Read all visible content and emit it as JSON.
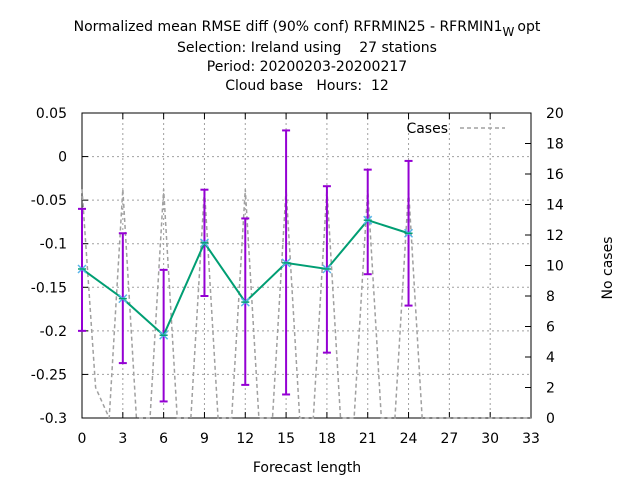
{
  "chart_data": {
    "type": "line",
    "title_lines": [
      "Normalized mean RMSE diff (90% conf) RFRMIN25 - RFRMIN1",
      "Selection: Ireland using    27 stations",
      "Period: 20200203-20200217",
      "Cloud base   Hours:  12"
    ],
    "title_subscript": "W",
    "title_suffix": "opt",
    "xlabel": "Forecast length",
    "ylabel_right": "No cases",
    "xlim": [
      0,
      33
    ],
    "ylim": [
      -0.3,
      0.05
    ],
    "y2lim": [
      0,
      20
    ],
    "x_ticks": [
      "0",
      "3",
      "6",
      "9",
      "12",
      "15",
      "18",
      "21",
      "24",
      "27",
      "30",
      "33"
    ],
    "y_ticks": [
      "0.05",
      "0",
      "-0.05",
      "-0.1",
      "-0.15",
      "-0.2",
      "-0.25",
      "-0.3"
    ],
    "y2_ticks": [
      "20",
      "18",
      "16",
      "14",
      "12",
      "10",
      "8",
      "6",
      "4",
      "2",
      "0"
    ],
    "grid": true,
    "legend_position": "top-right",
    "series": [
      {
        "name": "",
        "color": "#009e73",
        "marker_color": "#56b4e9",
        "x": [
          0,
          3,
          6,
          9,
          12,
          15,
          18,
          21,
          24
        ],
        "y": [
          -0.129,
          -0.163,
          -0.205,
          -0.099,
          -0.167,
          -0.122,
          -0.129,
          -0.073,
          -0.088
        ],
        "err_low": [
          -0.2,
          -0.237,
          -0.281,
          -0.16,
          -0.262,
          -0.273,
          -0.225,
          -0.135,
          -0.171
        ],
        "err_high": [
          -0.06,
          -0.088,
          -0.13,
          -0.038,
          -0.071,
          0.03,
          -0.034,
          -0.015,
          -0.005
        ],
        "err_color": "#9400d3"
      },
      {
        "name": "Cases",
        "axis": "right",
        "color": "#a0a0a0",
        "dashed": true,
        "x": [
          0,
          1,
          2,
          3,
          4,
          5,
          6,
          7,
          8,
          9,
          10,
          11,
          12,
          13,
          14,
          15,
          16,
          17,
          18,
          19,
          20,
          21,
          22,
          23,
          24,
          25,
          26,
          27,
          28,
          29,
          30,
          31,
          32,
          33
        ],
        "y": [
          15,
          2,
          0,
          15,
          0,
          0,
          15,
          0,
          0,
          15,
          0,
          0,
          15,
          0,
          0,
          15,
          0,
          0,
          15,
          0,
          0,
          15,
          0,
          0,
          15,
          0,
          0,
          0,
          0,
          0,
          0,
          0,
          0,
          0
        ]
      }
    ]
  }
}
